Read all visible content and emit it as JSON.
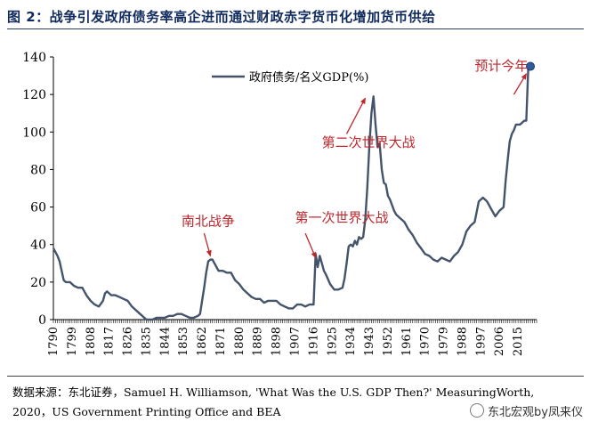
{
  "figure": {
    "title": "图 2：战争引发政府债务率高企进而通过财政赤字货币化增加货币供给"
  },
  "source": {
    "line1": "数据来源：东北证券，Samuel H. Williamson, 'What Was the U.S. GDP Then?' MeasuringWorth,",
    "line2": "2020，US Government Printing Office and BEA"
  },
  "watermark": "东北宏观by凤来仪",
  "chart_data": {
    "type": "line",
    "title": "",
    "xlabel": "",
    "ylabel": "",
    "x_range": [
      1790,
      2024
    ],
    "ylim": [
      0,
      140
    ],
    "yticks": [
      0,
      20,
      40,
      60,
      80,
      100,
      120,
      140
    ],
    "xticks": [
      "1790",
      "1799",
      "1808",
      "1817",
      "1826",
      "1835",
      "1844",
      "1853",
      "1862",
      "1871",
      "1880",
      "1889",
      "1898",
      "1907",
      "1916",
      "1925",
      "1934",
      "1943",
      "1952",
      "1961",
      "1970",
      "1979",
      "1988",
      "1997",
      "2006",
      "2015"
    ],
    "grid": false,
    "legend_position": "top-left",
    "colors": {
      "line": "#44546a",
      "annotation": "#c0272d",
      "marker": "#2e5b9e"
    },
    "series": [
      {
        "name": "政府债务/名义GDP(%)",
        "x": [
          1790,
          1791,
          1792,
          1793,
          1794,
          1795,
          1796,
          1798,
          1800,
          1802,
          1804,
          1806,
          1808,
          1810,
          1812,
          1814,
          1815,
          1816,
          1818,
          1820,
          1822,
          1824,
          1826,
          1828,
          1830,
          1832,
          1834,
          1835,
          1836,
          1838,
          1840,
          1842,
          1844,
          1846,
          1848,
          1850,
          1852,
          1854,
          1856,
          1858,
          1860,
          1861,
          1862,
          1863,
          1864,
          1865,
          1866,
          1867,
          1868,
          1870,
          1872,
          1874,
          1876,
          1878,
          1880,
          1882,
          1884,
          1886,
          1888,
          1890,
          1892,
          1894,
          1896,
          1898,
          1900,
          1902,
          1904,
          1906,
          1908,
          1910,
          1912,
          1914,
          1916,
          1917,
          1918,
          1919,
          1920,
          1921,
          1922,
          1924,
          1926,
          1928,
          1930,
          1931,
          1932,
          1933,
          1934,
          1935,
          1936,
          1937,
          1938,
          1939,
          1940,
          1941,
          1942,
          1943,
          1944,
          1945,
          1946,
          1947,
          1948,
          1949,
          1950,
          1951,
          1952,
          1953,
          1954,
          1955,
          1956,
          1958,
          1960,
          1962,
          1964,
          1966,
          1968,
          1970,
          1972,
          1974,
          1976,
          1978,
          1980,
          1982,
          1984,
          1986,
          1988,
          1990,
          1992,
          1994,
          1996,
          1998,
          2000,
          2002,
          2004,
          2006,
          2008,
          2009,
          2010,
          2011,
          2012,
          2013,
          2014,
          2016,
          2018,
          2019,
          2020
        ],
        "values": [
          38,
          36,
          34,
          31,
          26,
          21,
          20,
          20,
          18,
          17,
          17,
          13,
          10,
          8,
          7,
          10,
          14,
          15,
          13,
          13,
          12,
          11,
          10,
          7,
          5,
          3,
          1,
          0,
          0,
          0,
          1,
          1,
          1,
          2,
          2,
          3,
          3,
          2,
          1,
          1,
          2,
          3,
          10,
          17,
          25,
          31,
          32,
          32,
          30,
          26,
          26,
          25,
          25,
          21,
          19,
          16,
          14,
          12,
          11,
          11,
          9,
          10,
          10,
          10,
          8,
          7,
          6,
          6,
          8,
          8,
          7,
          8,
          8,
          35,
          28,
          34,
          30,
          26,
          24,
          19,
          16,
          16,
          17,
          22,
          30,
          39,
          40,
          39,
          42,
          40,
          44,
          43,
          44,
          53,
          70,
          92,
          110,
          119,
          104,
          92,
          94,
          80,
          73,
          72,
          66,
          64,
          61,
          58,
          56,
          54,
          52,
          48,
          45,
          41,
          38,
          35,
          34,
          32,
          31,
          33,
          32,
          31,
          34,
          36,
          40,
          47,
          50,
          52,
          63,
          65,
          63,
          59,
          55,
          58,
          60,
          74,
          85,
          95,
          99,
          101,
          104,
          104,
          106,
          106,
          135
        ]
      }
    ],
    "endpoint": {
      "label": "预计今年",
      "x": 2021,
      "y": 135
    },
    "annotations": [
      {
        "label": "南北战争",
        "tx": 1852,
        "ty": 50,
        "ax": 1866,
        "ay": 34
      },
      {
        "label": "第一次世界大战",
        "tx": 1907,
        "ty": 52,
        "ax": 1917,
        "ay": 33
      },
      {
        "label": "第二次世界大战",
        "tx": 1920,
        "ty": 92,
        "ax": 1941,
        "ay": 118
      },
      {
        "label": "预计今年",
        "tx": 1994,
        "ty": 133,
        "ax": 2019,
        "ay": 131
      }
    ]
  }
}
